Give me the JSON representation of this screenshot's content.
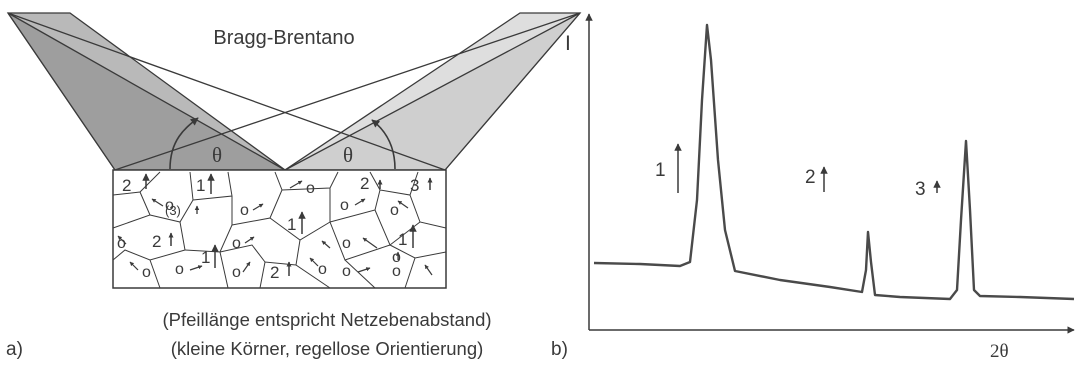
{
  "panel_a": {
    "label": "a)",
    "title": "Bragg-Brentano",
    "theta_left": "θ",
    "theta_right": "θ",
    "grain_labels": [
      "2",
      "1",
      "2",
      "3",
      "(3)",
      "2",
      "1",
      "1",
      "1",
      "2",
      "1"
    ],
    "grain_small_symbol": "o",
    "caption_line1": "(Pfeillänge entspricht Netzebenabstand)",
    "caption_line2": "(kleine Körner, regellose Orientierung)"
  },
  "panel_b": {
    "label": "b)",
    "y_axis_label": "I",
    "x_axis_label": "2θ",
    "peak_labels": [
      "1",
      "2",
      "3"
    ]
  },
  "colors": {
    "beam_dark": "#b7b7b7",
    "beam_light": "#dcdcdc",
    "stroke": "#3a3a3a"
  }
}
